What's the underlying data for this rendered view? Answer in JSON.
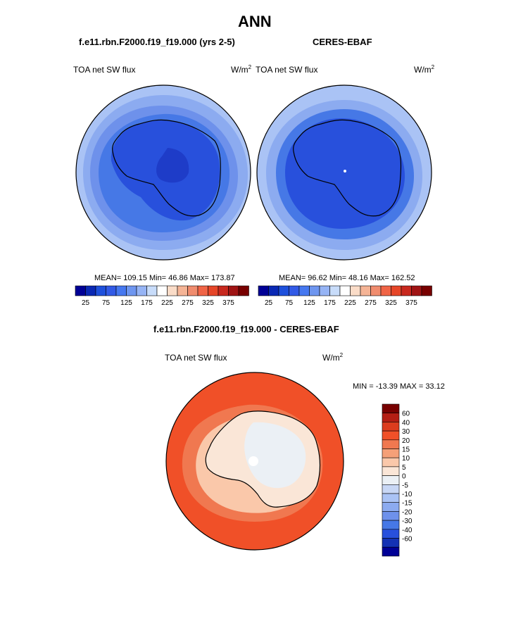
{
  "figure_title": "ANN",
  "top_left": {
    "case_title": "f.e11.rbn.F2000.f19_f19.000 (yrs 2-5)",
    "field": "TOA net SW flux",
    "units_base": "W/m",
    "units_exp": "2",
    "stats": "MEAN= 109.15  Min=  46.86  Max= 173.87"
  },
  "top_right": {
    "case_title": "CERES-EBAF",
    "field": "TOA net SW flux",
    "units_base": "W/m",
    "units_exp": "2",
    "stats": "MEAN=  96.62  Min=  48.16  Max= 162.52"
  },
  "abs_colorbar": {
    "colors": [
      "#000096",
      "#0a28b4",
      "#1e50dc",
      "#325ae6",
      "#4678f0",
      "#6e96f0",
      "#96b4f5",
      "#c8dcfa",
      "#ffffff",
      "#fadcc8",
      "#f5b496",
      "#f08c6e",
      "#f06446",
      "#e64628",
      "#c8281e",
      "#a01414",
      "#780000"
    ],
    "tick_labels": [
      "25",
      "75",
      "125",
      "175",
      "225",
      "275",
      "325",
      "375"
    ]
  },
  "diff": {
    "case_title": "f.e11.rbn.F2000.f19_f19.000 - CERES-EBAF",
    "field": "TOA net SW flux",
    "units_base": "W/m",
    "units_exp": "2",
    "minmax": "MIN = -13.39 MAX =  33.12"
  },
  "diff_colorbar": {
    "colors": [
      "#780000",
      "#b41e14",
      "#dc3c1e",
      "#f05028",
      "#f07850",
      "#f5a078",
      "#fac8aa",
      "#fae6d7",
      "#ebf0f5",
      "#c8d7f5",
      "#aac3f5",
      "#8cabf0",
      "#6e91eb",
      "#4678e6",
      "#2850dc",
      "#1432b4",
      "#000096"
    ],
    "tick_labels": [
      "60",
      "40",
      "30",
      "20",
      "15",
      "10",
      "5",
      "0",
      "-5",
      "-10",
      "-15",
      "-20",
      "-30",
      "-40",
      "-60"
    ]
  }
}
